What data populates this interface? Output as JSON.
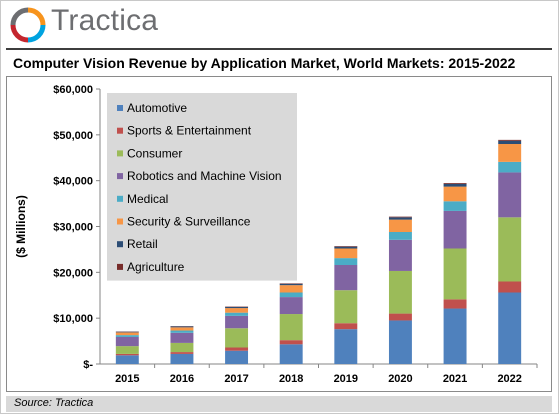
{
  "brand": {
    "name": "Tractica",
    "logo_colors": [
      "#f7941d",
      "#00a3e0",
      "#c4262e",
      "#6d6e71"
    ]
  },
  "source": "Source: Tractica",
  "chart_data": {
    "type": "bar",
    "stacked": true,
    "title": "Computer Vision Revenue by Application Market, World Markets: 2015-2022",
    "xlabel": "",
    "ylabel": "($ Millions)",
    "ylim": [
      0,
      60000
    ],
    "yticks": [
      0,
      10000,
      20000,
      30000,
      40000,
      50000,
      60000
    ],
    "ytick_labels": [
      "$-",
      "$10,000",
      "$20,000",
      "$30,000",
      "$40,000",
      "$50,000",
      "$60,000"
    ],
    "grid": false,
    "legend_position": "top-left",
    "categories": [
      "2015",
      "2016",
      "2017",
      "2018",
      "2019",
      "2020",
      "2021",
      "2022"
    ],
    "series": [
      {
        "name": "Automotive",
        "color": "#4f81bd",
        "values": [
          1900,
          2200,
          2900,
          4300,
          7600,
          9500,
          12100,
          15600
        ]
      },
      {
        "name": "Sports & Entertainment",
        "color": "#c0504d",
        "values": [
          300,
          400,
          700,
          900,
          1300,
          1500,
          2000,
          2400
        ]
      },
      {
        "name": "Consumer",
        "color": "#9bbb59",
        "values": [
          1700,
          2000,
          4200,
          5700,
          7200,
          9300,
          11100,
          14000
        ]
      },
      {
        "name": "Robotics and Machine Vision",
        "color": "#8064a2",
        "values": [
          2000,
          2200,
          2700,
          3700,
          5500,
          6800,
          8200,
          9800
        ]
      },
      {
        "name": "Medical",
        "color": "#4bacc6",
        "values": [
          400,
          500,
          700,
          1000,
          1500,
          1700,
          2100,
          2300
        ]
      },
      {
        "name": "Security & Surveillance",
        "color": "#f79646",
        "values": [
          600,
          700,
          1000,
          1600,
          2100,
          2700,
          3200,
          3900
        ]
      },
      {
        "name": "Retail",
        "color": "#2c4d75",
        "values": [
          150,
          200,
          250,
          300,
          400,
          500,
          600,
          700
        ]
      },
      {
        "name": "Agriculture",
        "color": "#772c2a",
        "values": [
          50,
          60,
          80,
          100,
          120,
          150,
          180,
          200
        ]
      }
    ]
  }
}
